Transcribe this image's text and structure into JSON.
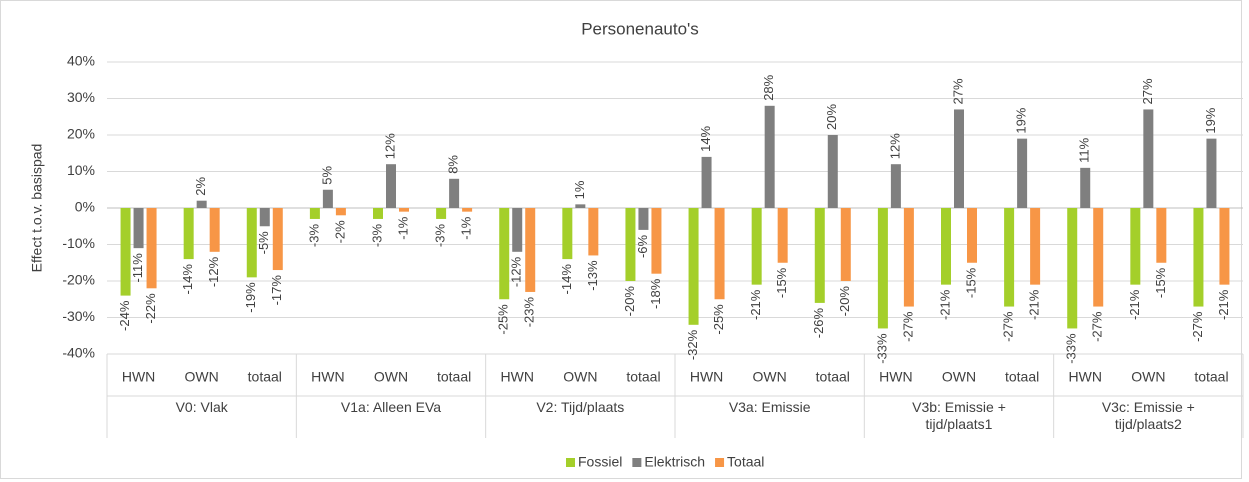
{
  "chart_data": {
    "type": "bar",
    "title": "Personenauto's",
    "y_label": "Effect t.o.v. basispad",
    "categories": [
      "HWN",
      "OWN",
      "totaal",
      "HWN",
      "OWN",
      "totaal",
      "HWN",
      "OWN",
      "totaal",
      "HWN",
      "OWN",
      "totaal",
      "HWN",
      "OWN",
      "totaal",
      "HWN",
      "OWN",
      "totaal"
    ],
    "groups": [
      "V0: Vlak",
      "V1a: Alleen EVa",
      "V2: Tijd/plaats",
      "V3a: Emissie",
      "V3b: Emissie + tijd/plaats1",
      "V3c: Emissie + tijd/plaats2"
    ],
    "series": [
      {
        "name": "Fossiel",
        "color": "#a4cf2a",
        "values": [
          -24,
          -14,
          -19,
          -3,
          -3,
          -3,
          -25,
          -14,
          -20,
          -32,
          -21,
          -26,
          -33,
          -21,
          -27,
          -33,
          -21,
          -27
        ],
        "value_labels": [
          "-24%",
          "-14%",
          "-19%",
          "-3%",
          "-3%",
          "-3%",
          "-25%",
          "-14%",
          "-20%",
          "-32%",
          "-21%",
          "-26%",
          "-33%",
          "-21%",
          "-27%",
          "-33%",
          "-21%",
          "-27%"
        ]
      },
      {
        "name": "Elektrisch",
        "color": "#7f7f7f",
        "values": [
          -11,
          2,
          -5,
          5,
          12,
          8,
          -12,
          1,
          -6,
          14,
          28,
          20,
          12,
          27,
          19,
          11,
          27,
          19
        ],
        "value_labels": [
          "-11%",
          "2%",
          "-5%",
          "5%",
          "12%",
          "8%",
          "-12%",
          "1%",
          "-6%",
          "14%",
          "28%",
          "20%",
          "12%",
          "27%",
          "19%",
          "11%",
          "27%",
          "19%"
        ]
      },
      {
        "name": "Totaal",
        "color": "#f79646",
        "values": [
          -22,
          -12,
          -17,
          -2,
          -1,
          -1,
          -23,
          -13,
          -18,
          -25,
          -15,
          -20,
          -27,
          -15,
          -21,
          -27,
          -15,
          -21
        ],
        "value_labels": [
          "-22%",
          "-12%",
          "-17%",
          "-2%",
          "-1%",
          "-1%",
          "-23%",
          "-13%",
          "-18%",
          "-25%",
          "-15%",
          "-20%",
          "-27%",
          "-15%",
          "-21%",
          "-27%",
          "-15%",
          "-21%"
        ]
      }
    ],
    "ylim": [
      -40,
      40
    ],
    "yticks": [
      {
        "value": -40,
        "label": "-40%"
      },
      {
        "value": -30,
        "label": "-30%"
      },
      {
        "value": -20,
        "label": "-20%"
      },
      {
        "value": -10,
        "label": "-10%"
      },
      {
        "value": 0,
        "label": "0%"
      },
      {
        "value": 10,
        "label": "10%"
      },
      {
        "value": 20,
        "label": "20%"
      },
      {
        "value": 30,
        "label": "30%"
      },
      {
        "value": 40,
        "label": "40%"
      }
    ],
    "grid": true,
    "legend": "bottom"
  }
}
